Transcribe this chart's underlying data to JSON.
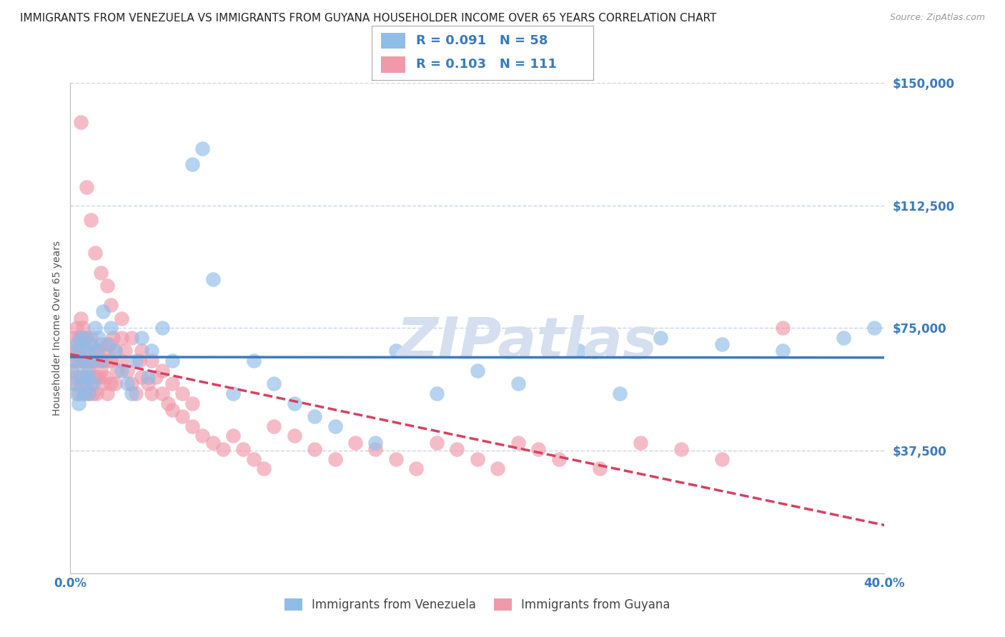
{
  "title": "IMMIGRANTS FROM VENEZUELA VS IMMIGRANTS FROM GUYANA HOUSEHOLDER INCOME OVER 65 YEARS CORRELATION CHART",
  "source": "Source: ZipAtlas.com",
  "ylabel": "Householder Income Over 65 years",
  "xlim": [
    0.0,
    0.4
  ],
  "ylim": [
    0,
    150000
  ],
  "yticks": [
    37500,
    75000,
    112500,
    150000
  ],
  "ytick_labels": [
    "$37,500",
    "$75,000",
    "$112,500",
    "$150,000"
  ],
  "xticks": [
    0.0,
    0.1,
    0.2,
    0.3,
    0.4
  ],
  "xtick_labels": [
    "0.0%",
    "",
    "",
    "",
    "40.0%"
  ],
  "venezuela_R": 0.091,
  "venezuela_N": 58,
  "guyana_R": 0.103,
  "guyana_N": 111,
  "venezuela_color": "#90bce8",
  "guyana_color": "#f099aa",
  "regression_venezuela_color": "#3a7abf",
  "regression_guyana_color": "#d94060",
  "background_color": "#ffffff",
  "grid_color": "#c8d4e8",
  "watermark": "ZIPatlas",
  "watermark_color": "#d5dff0",
  "title_fontsize": 11,
  "ylabel_fontsize": 10,
  "tick_fontsize": 12,
  "legend_fontsize": 13,
  "venezuela_x": [
    0.001,
    0.002,
    0.002,
    0.003,
    0.003,
    0.004,
    0.004,
    0.005,
    0.005,
    0.006,
    0.006,
    0.007,
    0.007,
    0.008,
    0.008,
    0.009,
    0.009,
    0.01,
    0.01,
    0.011,
    0.012,
    0.013,
    0.014,
    0.015,
    0.016,
    0.018,
    0.02,
    0.022,
    0.025,
    0.028,
    0.03,
    0.032,
    0.035,
    0.038,
    0.04,
    0.045,
    0.05,
    0.06,
    0.065,
    0.07,
    0.08,
    0.09,
    0.1,
    0.11,
    0.12,
    0.13,
    0.15,
    0.16,
    0.18,
    0.2,
    0.22,
    0.25,
    0.27,
    0.29,
    0.32,
    0.35,
    0.38,
    0.395
  ],
  "venezuela_y": [
    62000,
    58000,
    65000,
    55000,
    70000,
    52000,
    68000,
    60000,
    72000,
    55000,
    65000,
    58000,
    72000,
    62000,
    68000,
    55000,
    60000,
    65000,
    70000,
    58000,
    75000,
    68000,
    72000,
    65000,
    80000,
    70000,
    75000,
    68000,
    62000,
    58000,
    55000,
    65000,
    72000,
    60000,
    68000,
    75000,
    65000,
    125000,
    130000,
    90000,
    55000,
    65000,
    58000,
    52000,
    48000,
    45000,
    40000,
    68000,
    55000,
    62000,
    58000,
    68000,
    55000,
    72000,
    70000,
    68000,
    72000,
    75000
  ],
  "guyana_x": [
    0.001,
    0.001,
    0.002,
    0.002,
    0.002,
    0.003,
    0.003,
    0.003,
    0.004,
    0.004,
    0.004,
    0.005,
    0.005,
    0.005,
    0.005,
    0.006,
    0.006,
    0.006,
    0.007,
    0.007,
    0.007,
    0.008,
    0.008,
    0.008,
    0.009,
    0.009,
    0.009,
    0.01,
    0.01,
    0.01,
    0.011,
    0.011,
    0.012,
    0.012,
    0.013,
    0.013,
    0.014,
    0.014,
    0.015,
    0.015,
    0.016,
    0.016,
    0.017,
    0.017,
    0.018,
    0.018,
    0.019,
    0.02,
    0.02,
    0.021,
    0.022,
    0.022,
    0.023,
    0.025,
    0.025,
    0.027,
    0.028,
    0.03,
    0.032,
    0.034,
    0.035,
    0.038,
    0.04,
    0.042,
    0.045,
    0.048,
    0.05,
    0.055,
    0.06,
    0.065,
    0.07,
    0.075,
    0.08,
    0.085,
    0.09,
    0.095,
    0.1,
    0.11,
    0.12,
    0.13,
    0.14,
    0.15,
    0.16,
    0.17,
    0.18,
    0.19,
    0.2,
    0.21,
    0.22,
    0.23,
    0.24,
    0.26,
    0.28,
    0.3,
    0.32,
    0.005,
    0.008,
    0.01,
    0.012,
    0.015,
    0.018,
    0.02,
    0.025,
    0.03,
    0.035,
    0.04,
    0.045,
    0.05,
    0.055,
    0.06,
    0.35
  ],
  "guyana_y": [
    62000,
    68000,
    58000,
    65000,
    72000,
    60000,
    68000,
    75000,
    55000,
    65000,
    72000,
    58000,
    65000,
    72000,
    78000,
    60000,
    68000,
    75000,
    55000,
    65000,
    72000,
    58000,
    65000,
    72000,
    55000,
    62000,
    68000,
    58000,
    65000,
    72000,
    55000,
    65000,
    60000,
    68000,
    55000,
    65000,
    60000,
    68000,
    62000,
    70000,
    58000,
    65000,
    60000,
    68000,
    55000,
    65000,
    70000,
    58000,
    65000,
    72000,
    58000,
    68000,
    62000,
    72000,
    65000,
    68000,
    62000,
    58000,
    55000,
    65000,
    60000,
    58000,
    55000,
    60000,
    55000,
    52000,
    50000,
    48000,
    45000,
    42000,
    40000,
    38000,
    42000,
    38000,
    35000,
    32000,
    45000,
    42000,
    38000,
    35000,
    40000,
    38000,
    35000,
    32000,
    40000,
    38000,
    35000,
    32000,
    40000,
    38000,
    35000,
    32000,
    40000,
    38000,
    35000,
    138000,
    118000,
    108000,
    98000,
    92000,
    88000,
    82000,
    78000,
    72000,
    68000,
    65000,
    62000,
    58000,
    55000,
    52000,
    75000
  ]
}
